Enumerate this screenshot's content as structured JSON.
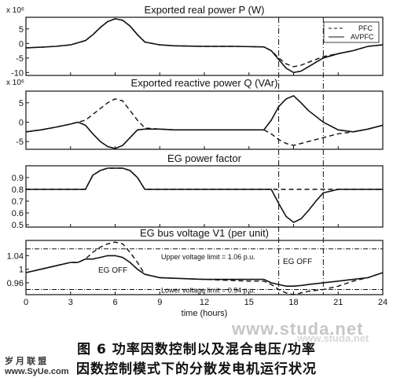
{
  "chart_data": [
    {
      "type": "line",
      "title": "Exported real power P (W)",
      "exponent_label": "x 10⁶",
      "yticks": [
        5,
        0,
        -5,
        -10
      ],
      "ylim": [
        -11,
        9
      ],
      "xlim": [
        0,
        24
      ],
      "legend": {
        "position": "top-right",
        "entries": [
          "PFC",
          "AVPFC"
        ]
      },
      "series": [
        {
          "name": "PFC",
          "style": "dashed",
          "x": [
            0,
            1,
            2,
            3,
            4,
            4.5,
            5,
            5.5,
            6,
            6.5,
            7,
            7.5,
            8,
            9,
            10,
            12,
            14,
            16,
            16.5,
            17,
            17.5,
            18,
            18.5,
            19,
            19.5,
            20,
            21,
            22,
            23,
            24
          ],
          "y": [
            -1.5,
            -1.3,
            -1,
            -0.5,
            1,
            3,
            5.5,
            7.5,
            8.5,
            8,
            6,
            3,
            0.5,
            -0.5,
            -0.8,
            -1,
            -1,
            -1.2,
            -2.5,
            -5,
            -7,
            -8,
            -7.5,
            -6.5,
            -5.5,
            -4.5,
            -3.5,
            -2.5,
            -1,
            -0.5
          ]
        },
        {
          "name": "AVPFC",
          "style": "solid",
          "x": [
            0,
            1,
            2,
            3,
            4,
            4.5,
            5,
            5.5,
            6,
            6.5,
            7,
            7.5,
            8,
            9,
            10,
            12,
            14,
            16,
            16.5,
            17,
            17.5,
            18,
            18.5,
            19,
            19.5,
            20,
            21,
            22,
            23,
            24
          ],
          "y": [
            -1.5,
            -1.3,
            -1,
            -0.5,
            1,
            3,
            5.5,
            7.5,
            8.5,
            8,
            6,
            3,
            0.5,
            -0.5,
            -0.8,
            -1,
            -1,
            -1.2,
            -2.5,
            -5.5,
            -8.5,
            -10,
            -9.5,
            -8,
            -6.5,
            -5,
            -3.5,
            -2.5,
            -1,
            -0.5
          ]
        }
      ]
    },
    {
      "type": "line",
      "title": "Exported reactive power Q (VAr)",
      "exponent_label": "x 10⁶",
      "yticks": [
        5,
        0,
        -5
      ],
      "ylim": [
        -7,
        8
      ],
      "xlim": [
        0,
        24
      ],
      "series": [
        {
          "name": "PFC",
          "style": "dashed",
          "x": [
            0,
            1,
            2,
            3,
            3.5,
            4,
            4.5,
            5,
            5.5,
            6,
            6.5,
            7,
            7.5,
            8,
            9,
            10,
            12,
            14,
            16,
            16.5,
            17,
            17.5,
            18,
            18.5,
            19,
            20,
            21,
            22,
            23,
            24
          ],
          "y": [
            -2.5,
            -2,
            -1.3,
            -0.5,
            0,
            0.5,
            2,
            3.5,
            5,
            6,
            5.5,
            3,
            0.5,
            -1.5,
            -1.8,
            -2,
            -2,
            -2,
            -2,
            -3,
            -4.5,
            -5.5,
            -6,
            -5.5,
            -5,
            -4,
            -3,
            -2.5,
            -1.8,
            -0.8
          ]
        },
        {
          "name": "AVPFC",
          "style": "solid",
          "x": [
            0,
            1,
            2,
            3,
            3.5,
            4,
            4.5,
            5,
            5.5,
            6,
            6.5,
            7,
            7.5,
            8,
            9,
            10,
            12,
            14,
            16,
            16.5,
            17,
            17.5,
            18,
            18.5,
            19,
            20,
            21,
            22,
            23,
            24
          ],
          "y": [
            -2.5,
            -2,
            -1.3,
            -0.5,
            0,
            -0.8,
            -3,
            -5,
            -6.3,
            -6.8,
            -6,
            -4,
            -2,
            -1.8,
            -1.8,
            -2,
            -2,
            -2,
            -2,
            0.5,
            4,
            6,
            6.8,
            5,
            3,
            0,
            -2,
            -2.5,
            -1.8,
            -0.8
          ]
        }
      ]
    },
    {
      "type": "line",
      "title": "EG power factor",
      "yticks": [
        0.9,
        0.8,
        0.7,
        0.6,
        0.5
      ],
      "ylim": [
        0.48,
        1.0
      ],
      "xlim": [
        0,
        24
      ],
      "series": [
        {
          "name": "PFC",
          "style": "dashed",
          "x": [
            0,
            4,
            4.5,
            5,
            5.5,
            6,
            6.5,
            7,
            7.5,
            8,
            16.5,
            17,
            24
          ],
          "y": [
            0.8,
            0.8,
            0.92,
            0.96,
            0.98,
            0.98,
            0.98,
            0.96,
            0.9,
            0.8,
            0.8,
            0.8,
            0.8
          ]
        },
        {
          "name": "AVPFC",
          "style": "solid",
          "x": [
            0,
            4,
            4.5,
            5,
            5.5,
            6,
            6.5,
            7,
            7.5,
            8,
            16.5,
            17,
            17.5,
            18,
            18.5,
            19,
            19.5,
            20,
            21,
            22,
            24
          ],
          "y": [
            0.8,
            0.8,
            0.92,
            0.96,
            0.98,
            0.98,
            0.98,
            0.96,
            0.9,
            0.8,
            0.8,
            0.68,
            0.57,
            0.52,
            0.55,
            0.62,
            0.7,
            0.77,
            0.8,
            0.8,
            0.8
          ]
        }
      ]
    },
    {
      "type": "line",
      "title": "EG bus voltage V1 (per unit)",
      "yticks": [
        1.04,
        1,
        0.96
      ],
      "ylim": [
        0.925,
        1.085
      ],
      "xlim": [
        0,
        24
      ],
      "xticks": [
        0,
        3,
        6,
        9,
        12,
        15,
        18,
        21,
        24
      ],
      "xlabel": "time (hours)",
      "annotations": [
        "Upper voltage limit = 1.06 p.u.",
        "Lower voltage limit = 0.94 p.u.",
        "EG OFF",
        "EG OFF"
      ],
      "limits": [
        1.06,
        0.94
      ],
      "series": [
        {
          "name": "PFC",
          "style": "dashed",
          "x": [
            0,
            1,
            2,
            3,
            3.5,
            4,
            4.5,
            5,
            5.5,
            6,
            6.5,
            7,
            7.5,
            8,
            9,
            12,
            15,
            16,
            16.5,
            17,
            17.5,
            18,
            18.5,
            19,
            20,
            21,
            22,
            23,
            24
          ],
          "y": [
            0.99,
            1.0,
            1.01,
            1.02,
            1.02,
            1.03,
            1.05,
            1.065,
            1.075,
            1.08,
            1.075,
            1.05,
            1.02,
            0.985,
            0.975,
            0.97,
            0.965,
            0.965,
            0.955,
            0.94,
            0.93,
            0.925,
            0.93,
            0.935,
            0.94,
            0.95,
            0.965,
            0.975,
            0.99
          ]
        },
        {
          "name": "AVPFC",
          "style": "solid",
          "x": [
            0,
            1,
            2,
            3,
            3.5,
            4,
            4.5,
            5,
            5.5,
            6,
            6.5,
            7,
            7.5,
            8,
            9,
            12,
            15,
            16,
            16.5,
            17,
            17.5,
            18,
            18.5,
            19,
            20,
            21,
            22,
            23,
            24
          ],
          "y": [
            0.99,
            1.0,
            1.01,
            1.02,
            1.02,
            1.03,
            1.03,
            1.035,
            1.04,
            1.04,
            1.035,
            1.02,
            1.0,
            0.985,
            0.975,
            0.97,
            0.97,
            0.97,
            0.96,
            0.955,
            0.95,
            0.95,
            0.952,
            0.955,
            0.96,
            0.965,
            0.97,
            0.975,
            0.99
          ]
        }
      ]
    }
  ],
  "markers": {
    "vertical_lines_x": [
      17,
      20
    ]
  },
  "caption": {
    "line1": "图 6   功率因数控制以及混合电压/功率",
    "line2": "因数控制模式下的分散发电机运行状况"
  },
  "watermark": {
    "url": "www.studa.net",
    "tag": "www.studa.net",
    "site_line1": "岁 月 联 盟",
    "site_line2": "www.SyUe.com"
  }
}
